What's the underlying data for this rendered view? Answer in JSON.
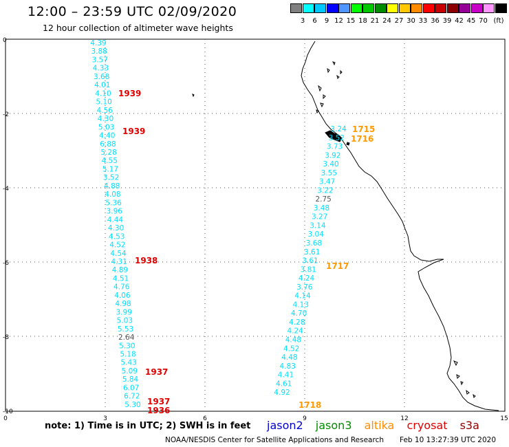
{
  "header": {
    "title": "12:00 – 23:59 UTC 02/09/2020",
    "subtitle": "12 hour collection of altimeter wave heights"
  },
  "color_scale": {
    "unit": "(ft)",
    "colors": [
      "#808080",
      "#00ffff",
      "#00c8ff",
      "#0000ff",
      "#5096ff",
      "#00ff00",
      "#00c800",
      "#008c00",
      "#ffff00",
      "#ffc800",
      "#ff8c00",
      "#ff0000",
      "#c80000",
      "#8c0000",
      "#960096",
      "#c800c8",
      "#ff96ff",
      "#000000"
    ],
    "labels": [
      "3",
      "6",
      "9",
      "12",
      "15",
      "18",
      "21",
      "24",
      "27",
      "30",
      "33",
      "36",
      "39",
      "42",
      "45",
      "70"
    ]
  },
  "axes": {
    "x_ticks": [
      "0",
      "3",
      "6",
      "9",
      "12",
      "15"
    ],
    "y_ticks": [
      "0",
      "-2",
      "-4",
      "-6",
      "-8",
      "-10"
    ]
  },
  "track_west": {
    "color": "#00e0ff",
    "values": [
      "4.39",
      "3.88",
      "3.57",
      "4.33",
      "3.68",
      "4.01",
      "4.10",
      "5.10",
      "4.56",
      "4.30",
      "5.03",
      "4.40",
      "6.88",
      "5.28",
      "4.55",
      "5.17",
      "3.52",
      "4.88",
      "4.08",
      "5.36",
      "3.96",
      "4.44",
      "4.30",
      "4.53",
      "4.52",
      "4.54",
      "4.31",
      "4.89",
      "4.51",
      "4.76",
      "4.06",
      "4.98",
      "3.99",
      "5.03",
      "5.53",
      "2.64",
      "5.30",
      "5.18",
      "5.43",
      "5.09",
      "5.84",
      "6.07",
      "6.72",
      "5.30"
    ]
  },
  "track_east": {
    "color": "#00e0ff",
    "values": [
      "3.24",
      "3.52",
      "3.73",
      "3.92",
      "3.40",
      "3.55",
      "3.47",
      "3.22",
      "2.75",
      "3.48",
      "3.27",
      "3.14",
      "3.04",
      "3.68",
      "3.61",
      "3.61",
      "3.81",
      "4.24",
      "3.76",
      "4.14",
      "4.13",
      "4.70",
      "4.28",
      "4.24",
      "4.48",
      "4.52",
      "4.48",
      "4.83",
      "4.41",
      "4.61",
      "4.92"
    ]
  },
  "pass_times": [
    {
      "label": "1939",
      "color": "#e00000"
    },
    {
      "label": "1939",
      "color": "#e00000"
    },
    {
      "label": "1938",
      "color": "#e00000"
    },
    {
      "label": "1937",
      "color": "#e00000"
    },
    {
      "label": "1937",
      "color": "#e00000"
    },
    {
      "label": "1936",
      "color": "#e00000"
    },
    {
      "label": "1715",
      "color": "#ff9900"
    },
    {
      "label": "1716",
      "color": "#ff9900"
    },
    {
      "label": "1717",
      "color": "#ff9900"
    },
    {
      "label": "1718",
      "color": "#ff9900"
    }
  ],
  "note": "note: 1) Time is in UTC; 2) SWH is in feet",
  "legend": [
    {
      "name": "jason2",
      "color": "#0000cc"
    },
    {
      "name": "jason3",
      "color": "#008c00"
    },
    {
      "name": "altika",
      "color": "#ff8c00"
    },
    {
      "name": "cryosat",
      "color": "#e00000"
    },
    {
      "name": "s3a",
      "color": "#8c0000"
    }
  ],
  "footer": "NOAA/NESDIS Center for Satellite Applications and Research",
  "timestamp": "Feb 10 13:27:39 UTC 2020"
}
